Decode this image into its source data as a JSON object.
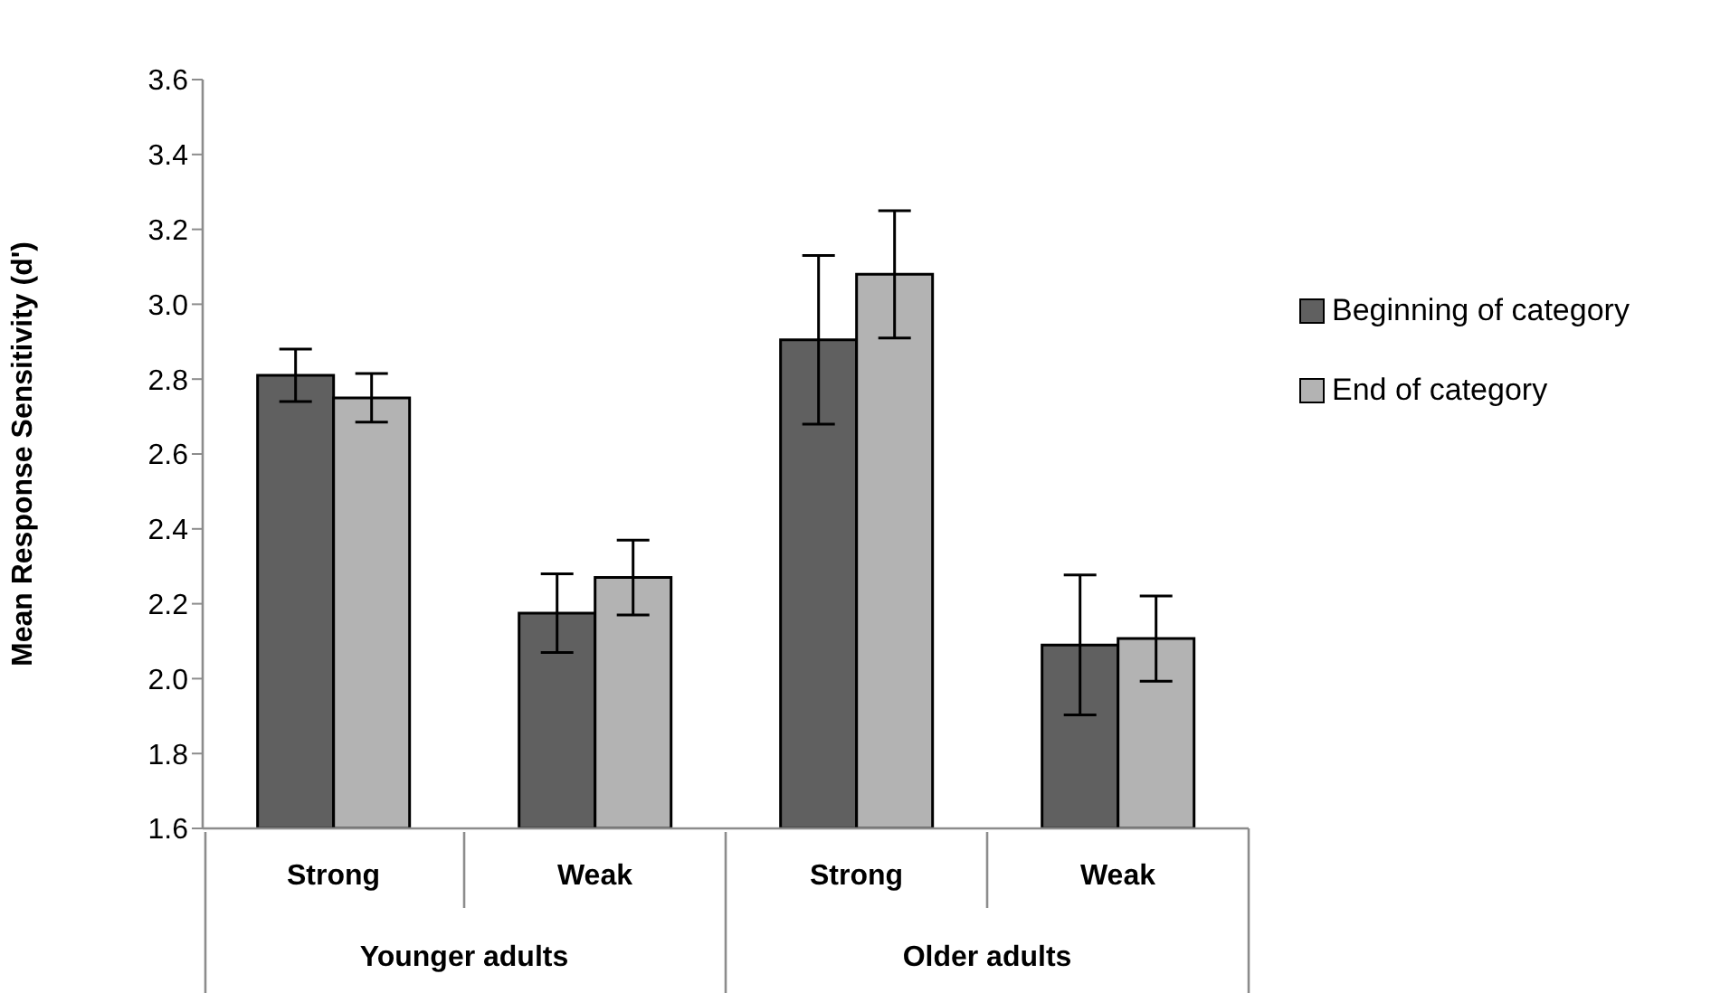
{
  "chart_data": {
    "type": "bar",
    "ylabel": "Mean Response Sensitivity (d')",
    "categories": [
      "Strong",
      "Weak",
      "Strong",
      "Weak"
    ],
    "annotations": [
      "Younger adults",
      "Older adults"
    ],
    "series": [
      {
        "name": "Beginning of category",
        "color": "#606060",
        "values": [
          2.81,
          2.175,
          2.905,
          2.09
        ],
        "errors": [
          0.07,
          0.105,
          0.225,
          0.187
        ]
      },
      {
        "name": "End of category",
        "color": "#b3b3b3",
        "values": [
          2.75,
          2.27,
          3.08,
          2.107
        ],
        "errors": [
          0.065,
          0.1,
          0.17,
          0.114
        ]
      }
    ],
    "ylim": [
      1.6,
      3.6
    ],
    "yticks": [
      1.6,
      1.8,
      {
        "value": 2,
        "label": "2.0"
      },
      2.2,
      2.4,
      2.6,
      2.8,
      {
        "value": 3,
        "label": "3.0"
      },
      3.2,
      3.4,
      3.6
    ],
    "legend": "right"
  }
}
